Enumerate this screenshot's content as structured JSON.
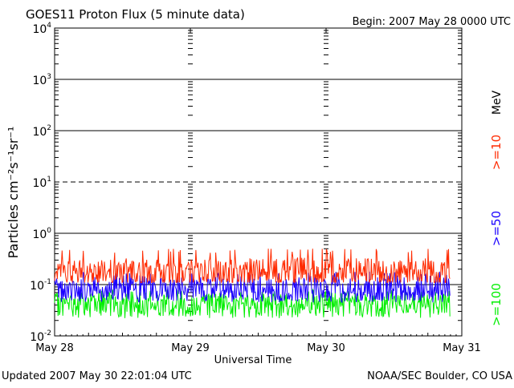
{
  "header": {
    "title": "GOES11 Proton Flux (5 minute data)",
    "begin": "Begin:  2007 May 28 0000 UTC"
  },
  "footer": {
    "updated": "Updated 2007 May 30 22:01:04 UTC",
    "credit": "NOAA/SEC Boulder, CO USA"
  },
  "colors": {
    "ge10": "#ff2a00",
    "ge50": "#1a00ff",
    "ge100": "#00ee00",
    "axis": "#000000"
  },
  "chart_data": {
    "type": "line",
    "title": "GOES11 Proton Flux (5 minute data)",
    "xlabel": "Universal Time",
    "ylabel": "Particles cm⁻²s⁻¹sr⁻¹",
    "yscale": "log",
    "ylim": [
      0.01,
      10000
    ],
    "xlim": [
      "2007-05-28 00:00",
      "2007-05-31 00:00"
    ],
    "x_ticks": [
      "May 28",
      "May 29",
      "May 30",
      "May 31"
    ],
    "y_ticks": [
      {
        "base": "10",
        "exp": "4"
      },
      {
        "base": "10",
        "exp": "3"
      },
      {
        "base": "10",
        "exp": "2"
      },
      {
        "base": "10",
        "exp": "1"
      },
      {
        "base": "10",
        "exp": "0"
      },
      {
        "base": "10",
        "exp": "-1"
      },
      {
        "base": "10",
        "exp": "-2"
      }
    ],
    "legend_units": "MeV",
    "series": [
      {
        "name": ">=10",
        "color_key": "ge10",
        "x": [
          "2007-05-28 00:00",
          "2007-05-28 06:00",
          "2007-05-28 12:00",
          "2007-05-28 18:00",
          "2007-05-29 00:00",
          "2007-05-29 06:00",
          "2007-05-29 12:00",
          "2007-05-29 18:00",
          "2007-05-30 00:00",
          "2007-05-30 06:00",
          "2007-05-30 12:00",
          "2007-05-30 18:00",
          "2007-05-30 22:00"
        ],
        "values": [
          0.18,
          0.17,
          0.19,
          0.17,
          0.18,
          0.17,
          0.18,
          0.19,
          0.17,
          0.18,
          0.17,
          0.18,
          0.17
        ],
        "range": [
          0.11,
          0.5
        ]
      },
      {
        "name": ">=50",
        "color_key": "ge50",
        "x": [
          "2007-05-28 00:00",
          "2007-05-28 06:00",
          "2007-05-28 12:00",
          "2007-05-28 18:00",
          "2007-05-29 00:00",
          "2007-05-29 06:00",
          "2007-05-29 12:00",
          "2007-05-29 18:00",
          "2007-05-30 00:00",
          "2007-05-30 06:00",
          "2007-05-30 12:00",
          "2007-05-30 18:00",
          "2007-05-30 22:00"
        ],
        "values": [
          0.08,
          0.08,
          0.09,
          0.08,
          0.08,
          0.09,
          0.08,
          0.08,
          0.09,
          0.08,
          0.08,
          0.09,
          0.08
        ],
        "range": [
          0.045,
          0.18
        ]
      },
      {
        "name": ">=100",
        "color_key": "ge100",
        "x": [
          "2007-05-28 00:00",
          "2007-05-28 06:00",
          "2007-05-28 12:00",
          "2007-05-28 18:00",
          "2007-05-29 00:00",
          "2007-05-29 06:00",
          "2007-05-29 12:00",
          "2007-05-29 18:00",
          "2007-05-30 00:00",
          "2007-05-30 06:00",
          "2007-05-30 12:00",
          "2007-05-30 18:00",
          "2007-05-30 22:00"
        ],
        "values": [
          0.04,
          0.04,
          0.045,
          0.04,
          0.04,
          0.045,
          0.04,
          0.04,
          0.045,
          0.04,
          0.04,
          0.045,
          0.04
        ],
        "range": [
          0.022,
          0.08
        ]
      }
    ],
    "grid": true,
    "legend": "right"
  }
}
